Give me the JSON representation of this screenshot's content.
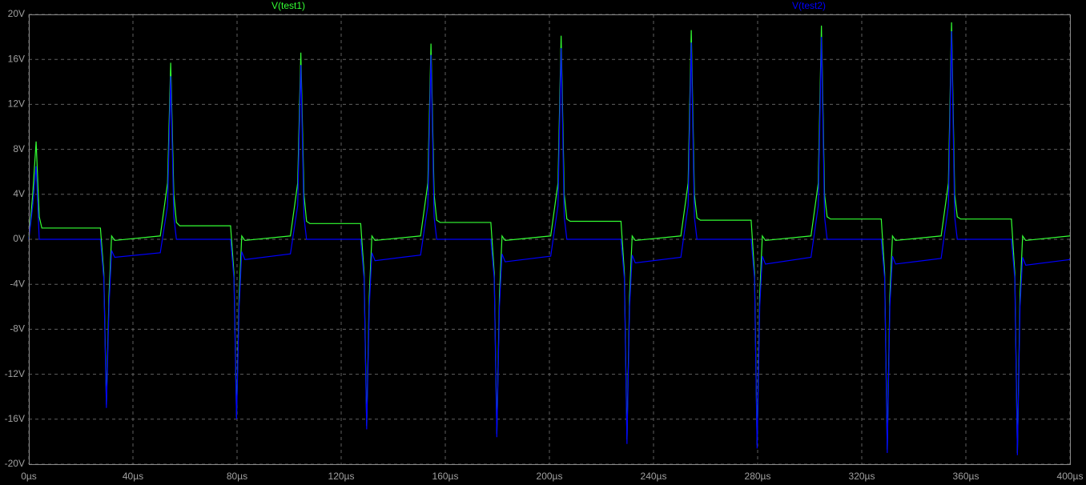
{
  "chart_data": {
    "type": "line",
    "grid": true,
    "xlim": [
      0,
      400
    ],
    "ylim": [
      -20,
      20
    ],
    "xticks": [
      {
        "value": 0,
        "label": "0µs"
      },
      {
        "value": 40,
        "label": "40µs"
      },
      {
        "value": 80,
        "label": "80µs"
      },
      {
        "value": 120,
        "label": "120µs"
      },
      {
        "value": 160,
        "label": "160µs"
      },
      {
        "value": 200,
        "label": "200µs"
      },
      {
        "value": 240,
        "label": "240µs"
      },
      {
        "value": 280,
        "label": "280µs"
      },
      {
        "value": 320,
        "label": "320µs"
      },
      {
        "value": 360,
        "label": "360µs"
      },
      {
        "value": 400,
        "label": "400µs"
      }
    ],
    "yticks": [
      {
        "value": -20,
        "label": "-20V"
      },
      {
        "value": -16,
        "label": "-16V"
      },
      {
        "value": -12,
        "label": "-12V"
      },
      {
        "value": -8,
        "label": "-8V"
      },
      {
        "value": -4,
        "label": "-4V"
      },
      {
        "value": 0,
        "label": "0V"
      },
      {
        "value": 4,
        "label": "4V"
      },
      {
        "value": 8,
        "label": "8V"
      },
      {
        "value": 12,
        "label": "12V"
      },
      {
        "value": 16,
        "label": "16V"
      },
      {
        "value": 20,
        "label": "20V"
      }
    ],
    "x": [
      0,
      1.5,
      2.8,
      4,
      5,
      27.5,
      28.8,
      29.8,
      30.8,
      31.8,
      33,
      50.5,
      53.3,
      54.5,
      55.7,
      56.7,
      58,
      77.5,
      78.8,
      79.8,
      80.8,
      81.8,
      83,
      100.5,
      103.3,
      104.5,
      105.7,
      106.7,
      108,
      127.5,
      128.8,
      129.8,
      130.8,
      131.8,
      133,
      150.5,
      153.3,
      154.5,
      155.7,
      156.7,
      158,
      177.5,
      178.8,
      179.8,
      180.8,
      181.8,
      183,
      200.5,
      203.3,
      204.5,
      205.7,
      206.7,
      208,
      227.5,
      228.8,
      229.8,
      230.8,
      231.8,
      233,
      250.5,
      253.3,
      254.5,
      255.7,
      256.7,
      258,
      277.5,
      278.8,
      279.8,
      280.8,
      281.8,
      283,
      300.5,
      303.3,
      304.5,
      305.7,
      306.7,
      308,
      327.5,
      328.8,
      329.8,
      330.8,
      331.8,
      333,
      350.5,
      353.3,
      354.5,
      355.7,
      356.7,
      358,
      377.5,
      378.8,
      379.8,
      380.8,
      381.8,
      383,
      400
    ],
    "series": [
      {
        "name": "V(test1)",
        "color": "#33ff33",
        "values": [
          0,
          4,
          8.7,
          2,
          1.0,
          1.0,
          -3,
          -14.7,
          -5,
          0.3,
          -0.1,
          0.3,
          5,
          15.7,
          4,
          1.5,
          1.2,
          1.2,
          -3,
          -15.8,
          -5,
          0.3,
          -0.1,
          0.3,
          5,
          16.6,
          4,
          1.6,
          1.4,
          1.4,
          -3,
          -16.6,
          -5,
          0.3,
          -0.1,
          0.3,
          5,
          17.4,
          4,
          1.7,
          1.5,
          1.5,
          -3,
          -17.3,
          -5,
          0.3,
          -0.1,
          0.3,
          5,
          18.1,
          4,
          1.8,
          1.6,
          1.6,
          -3,
          -17.8,
          -5,
          0.3,
          -0.1,
          0.3,
          5,
          18.6,
          4,
          1.9,
          1.7,
          1.7,
          -3,
          -18.3,
          -5,
          0.3,
          -0.1,
          0.3,
          5,
          19.0,
          4,
          2.0,
          1.8,
          1.8,
          -3,
          -18.7,
          -5,
          0.3,
          -0.1,
          0.3,
          5,
          19.3,
          4,
          2.0,
          1.8,
          1.8,
          -3,
          -19.0,
          -5,
          0.3,
          -0.1,
          0.3
        ]
      },
      {
        "name": "V(test2)",
        "color": "#0000ff",
        "values": [
          0,
          3,
          6.5,
          0,
          0,
          0,
          -3.5,
          -15.0,
          -6,
          -1.0,
          -1.6,
          -1.2,
          3,
          14.5,
          2,
          0,
          0,
          0,
          -3.5,
          -16.0,
          -6,
          -1.1,
          -1.8,
          -1.3,
          3,
          15.5,
          2,
          0,
          0,
          0,
          -3.5,
          -16.9,
          -6,
          -1.2,
          -1.9,
          -1.4,
          3,
          16.4,
          2,
          0,
          0,
          0,
          -3.5,
          -17.6,
          -6,
          -1.3,
          -2.0,
          -1.5,
          3,
          17.0,
          2,
          0,
          0,
          0,
          -3.5,
          -18.2,
          -6,
          -1.4,
          -2.1,
          -1.6,
          3,
          17.5,
          2,
          0,
          0,
          0,
          -3.5,
          -18.6,
          -6,
          -1.5,
          -2.2,
          -1.6,
          3,
          18.0,
          2,
          0,
          0,
          0,
          -3.5,
          -19.0,
          -6,
          -1.5,
          -2.2,
          -1.7,
          3,
          18.5,
          2,
          0,
          0,
          0,
          -3.5,
          -19.2,
          -6,
          -1.6,
          -2.3,
          -1.8
        ]
      }
    ]
  }
}
